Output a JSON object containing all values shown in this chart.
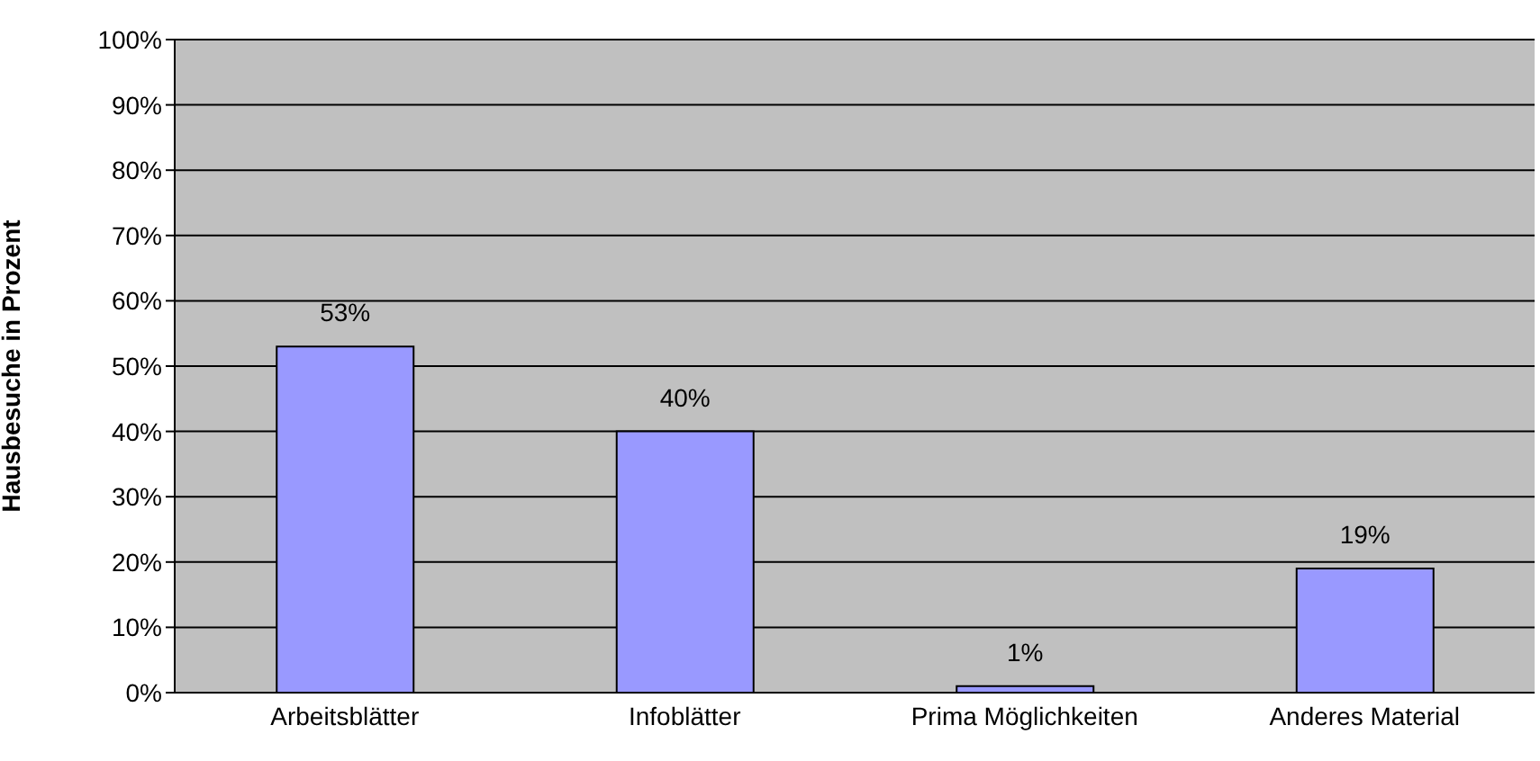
{
  "chart_data": {
    "type": "bar",
    "ylabel": "Hausbesuche in Prozent",
    "categories": [
      "Arbeitsblätter",
      "Infoblätter",
      "Prima Möglichkeiten",
      "Anderes Material"
    ],
    "values": [
      53,
      40,
      1,
      19
    ],
    "value_labels": [
      "53%",
      "40%",
      "1%",
      "19%"
    ],
    "color": "#9999ff",
    "ylim": [
      0,
      100
    ],
    "yticks": [
      {
        "value": 0,
        "label": "0%"
      },
      {
        "value": 10,
        "label": "10%"
      },
      {
        "value": 20,
        "label": "20%"
      },
      {
        "value": 30,
        "label": "30%"
      },
      {
        "value": 40,
        "label": "40%"
      },
      {
        "value": 50,
        "label": "50%"
      },
      {
        "value": 60,
        "label": "60%"
      },
      {
        "value": 70,
        "label": "70%"
      },
      {
        "value": 80,
        "label": "80%"
      },
      {
        "value": 90,
        "label": "90%"
      },
      {
        "value": 100,
        "label": "100%"
      }
    ],
    "grid": "y",
    "legend": false
  }
}
